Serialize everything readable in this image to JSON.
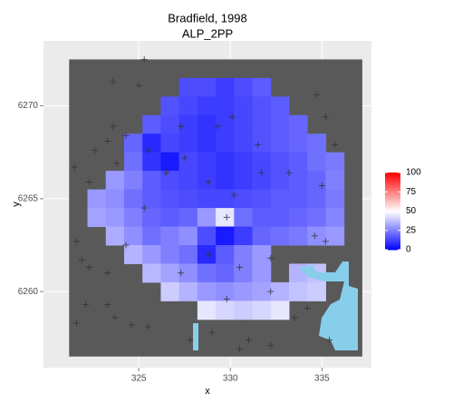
{
  "chart_data": {
    "type": "heatmap",
    "title": "Bradfield, 1998",
    "subtitle": "ALP_2PP",
    "x_label": "x",
    "y_label": "y",
    "xlim": [
      319.8,
      337.7
    ],
    "ylim": [
      6255.9,
      6273.5
    ],
    "xticks": [
      325,
      330,
      335
    ],
    "yticks": [
      6260,
      6265,
      6270
    ],
    "grid": true,
    "na_color": "#595959",
    "x": [
      321.7,
      322.7,
      323.7,
      324.7,
      325.7,
      326.7,
      327.7,
      328.7,
      329.7,
      330.7,
      331.7,
      332.7,
      333.7,
      334.7,
      335.7,
      336.7
    ],
    "y": [
      6272,
      6271,
      6270,
      6269,
      6268,
      6267,
      6266,
      6265,
      6264,
      6263,
      6262,
      6261,
      6260,
      6259,
      6258,
      6257
    ],
    "z": [
      [
        null,
        null,
        null,
        null,
        null,
        null,
        null,
        null,
        null,
        null,
        null,
        null,
        null,
        null,
        null,
        null
      ],
      [
        null,
        null,
        null,
        null,
        null,
        null,
        15,
        15,
        12,
        15,
        18,
        null,
        null,
        null,
        null,
        null
      ],
      [
        null,
        null,
        null,
        null,
        null,
        16,
        14,
        12,
        12,
        14,
        16,
        18,
        null,
        null,
        null,
        null
      ],
      [
        null,
        null,
        null,
        null,
        18,
        15,
        12,
        10,
        12,
        14,
        16,
        18,
        20,
        null,
        null,
        null
      ],
      [
        null,
        null,
        null,
        20,
        8,
        14,
        12,
        10,
        12,
        14,
        16,
        18,
        20,
        22,
        null,
        null
      ],
      [
        null,
        null,
        null,
        22,
        10,
        5,
        14,
        12,
        10,
        12,
        14,
        16,
        18,
        22,
        24,
        null
      ],
      [
        null,
        null,
        30,
        25,
        18,
        15,
        14,
        12,
        10,
        12,
        14,
        16,
        18,
        20,
        25,
        null
      ],
      [
        null,
        30,
        28,
        22,
        18,
        16,
        15,
        14,
        14,
        15,
        16,
        18,
        18,
        20,
        24,
        null
      ],
      [
        null,
        32,
        30,
        25,
        20,
        18,
        20,
        30,
        45,
        22,
        18,
        18,
        20,
        22,
        26,
        null
      ],
      [
        null,
        null,
        34,
        28,
        22,
        25,
        28,
        15,
        5,
        12,
        20,
        22,
        24,
        28,
        30,
        null
      ],
      [
        null,
        null,
        null,
        35,
        30,
        25,
        22,
        8,
        18,
        25,
        30,
        null,
        null,
        null,
        null,
        null
      ],
      [
        null,
        null,
        null,
        null,
        36,
        32,
        28,
        22,
        20,
        25,
        30,
        null,
        35,
        38,
        null,
        null
      ],
      [
        null,
        null,
        null,
        null,
        null,
        40,
        35,
        30,
        28,
        30,
        32,
        35,
        38,
        40,
        null,
        null
      ],
      [
        null,
        null,
        null,
        null,
        null,
        null,
        null,
        45,
        42,
        40,
        42,
        45,
        null,
        null,
        null,
        null
      ],
      [
        null,
        null,
        null,
        null,
        null,
        null,
        null,
        null,
        null,
        null,
        null,
        null,
        null,
        null,
        null,
        null
      ],
      [
        null,
        null,
        null,
        null,
        null,
        null,
        null,
        null,
        null,
        null,
        null,
        null,
        null,
        null,
        null,
        null
      ]
    ],
    "colorscale": {
      "low": "#0000ff",
      "mid": "#ffffff",
      "high": "#ff0000",
      "limits": [
        0,
        100
      ],
      "midpoint": 50,
      "ticks": [
        0,
        25,
        50,
        75,
        100
      ]
    },
    "points": {
      "color": "#333333",
      "x": [
        325.3,
        321.5,
        323.6,
        325.0,
        322.6,
        323.6,
        323.3,
        324.3,
        322.3,
        323.8,
        321.6,
        321.9,
        322.3,
        323.3,
        322.1,
        323.3,
        323.7,
        321.6,
        324.6,
        325.5,
        327.8,
        329.0,
        330.5,
        331.0,
        332.2,
        333.5,
        334.2,
        335.4,
        335.2,
        334.6,
        334.7,
        335.2,
        335.7,
        335.0,
        325.5,
        326.5,
        327.5,
        328.8,
        330.2,
        331.7,
        329.8,
        328.8,
        330.5,
        332.2,
        333.2,
        331.5,
        329.3,
        327.3,
        330.1,
        325.3,
        324.3,
        327.3,
        332.2,
        329.8
      ],
      "y": [
        6272.5,
        6266.7,
        6271.3,
        6271.1,
        6267.6,
        6268.9,
        6268.1,
        6268.4,
        6265.9,
        6266.9,
        6262.7,
        6261.7,
        6261.3,
        6261.0,
        6259.3,
        6259.3,
        6258.6,
        6258.3,
        6258.2,
        6258.1,
        6257.4,
        6257.8,
        6256.9,
        6257.4,
        6257.1,
        6258.6,
        6259.1,
        6257.4,
        6262.7,
        6263.0,
        6270.6,
        6269.4,
        6267.9,
        6265.7,
        6267.6,
        6266.4,
        6267.2,
        6265.9,
        6265.2,
        6266.4,
        6264.0,
        6262.0,
        6261.3,
        6261.8,
        6266.4,
        6267.9,
        6268.9,
        6268.9,
        6269.4,
        6264.5,
        6262.5,
        6261.0,
        6260.0,
        6259.6
      ]
    }
  }
}
